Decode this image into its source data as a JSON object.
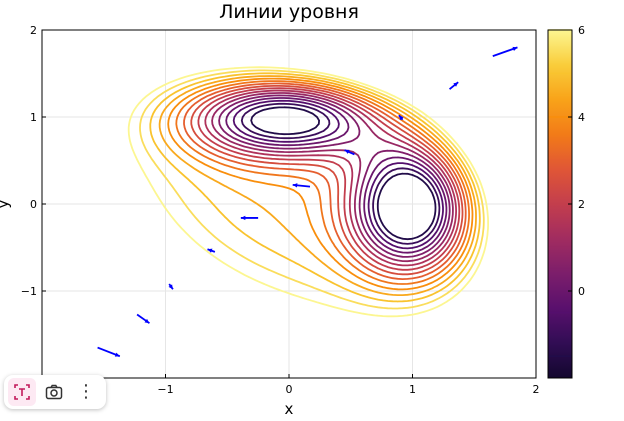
{
  "chart_data": {
    "type": "contour",
    "title": "Линии уровня",
    "xlabel": "x",
    "ylabel": "y",
    "xlim": [
      -2,
      2
    ],
    "ylim": [
      -2,
      2
    ],
    "xticks": [
      -1,
      0,
      1,
      2
    ],
    "yticks": [
      -1,
      0,
      1,
      2
    ],
    "xtick_labels": [
      "−1",
      "0",
      "1",
      "2"
    ],
    "ytick_labels": [
      "−1",
      "0",
      "1",
      "2"
    ],
    "grid": true,
    "colorbar": {
      "range": [
        -2,
        6
      ],
      "ticks": [
        0,
        2,
        4,
        6
      ],
      "tick_labels": [
        "0",
        "2",
        "4",
        "6"
      ],
      "levels": [
        -1.5,
        -1,
        -0.5,
        0,
        0.5,
        1,
        1.5,
        2,
        2.5,
        3,
        3.5,
        4,
        4.5,
        5,
        5.5,
        6
      ],
      "colormap": "inferno"
    },
    "contour_levels": [
      -1.5,
      -1,
      -0.5,
      0,
      0.5,
      1,
      1.5,
      2,
      2.5,
      3,
      3.5,
      4,
      4.5,
      5,
      5.5,
      6
    ],
    "gradient_arrows": [
      {
        "x": -1.55,
        "y": -1.65,
        "dx": 0.18,
        "dy": -0.1
      },
      {
        "x": -1.23,
        "y": -1.27,
        "dx": 0.1,
        "dy": -0.1
      },
      {
        "x": -0.97,
        "y": -0.92,
        "dx": 0.03,
        "dy": -0.06
      },
      {
        "x": -0.6,
        "y": -0.55,
        "dx": -0.06,
        "dy": 0.03
      },
      {
        "x": -0.25,
        "y": -0.16,
        "dx": -0.14,
        "dy": 0.0
      },
      {
        "x": 0.17,
        "y": 0.2,
        "dx": -0.14,
        "dy": 0.02
      },
      {
        "x": 0.53,
        "y": 0.57,
        "dx": -0.08,
        "dy": 0.05
      },
      {
        "x": 0.92,
        "y": 0.97,
        "dx": -0.03,
        "dy": 0.05
      },
      {
        "x": 1.3,
        "y": 1.32,
        "dx": 0.07,
        "dy": 0.08
      },
      {
        "x": 1.65,
        "y": 1.7,
        "dx": 0.2,
        "dy": 0.1
      }
    ],
    "arrow_color": "#0000ff"
  },
  "ui": {
    "toolbar": {
      "text_button_icon": "text-recognition-icon",
      "camera_button_icon": "camera-icon",
      "more_label": "⋮"
    }
  }
}
